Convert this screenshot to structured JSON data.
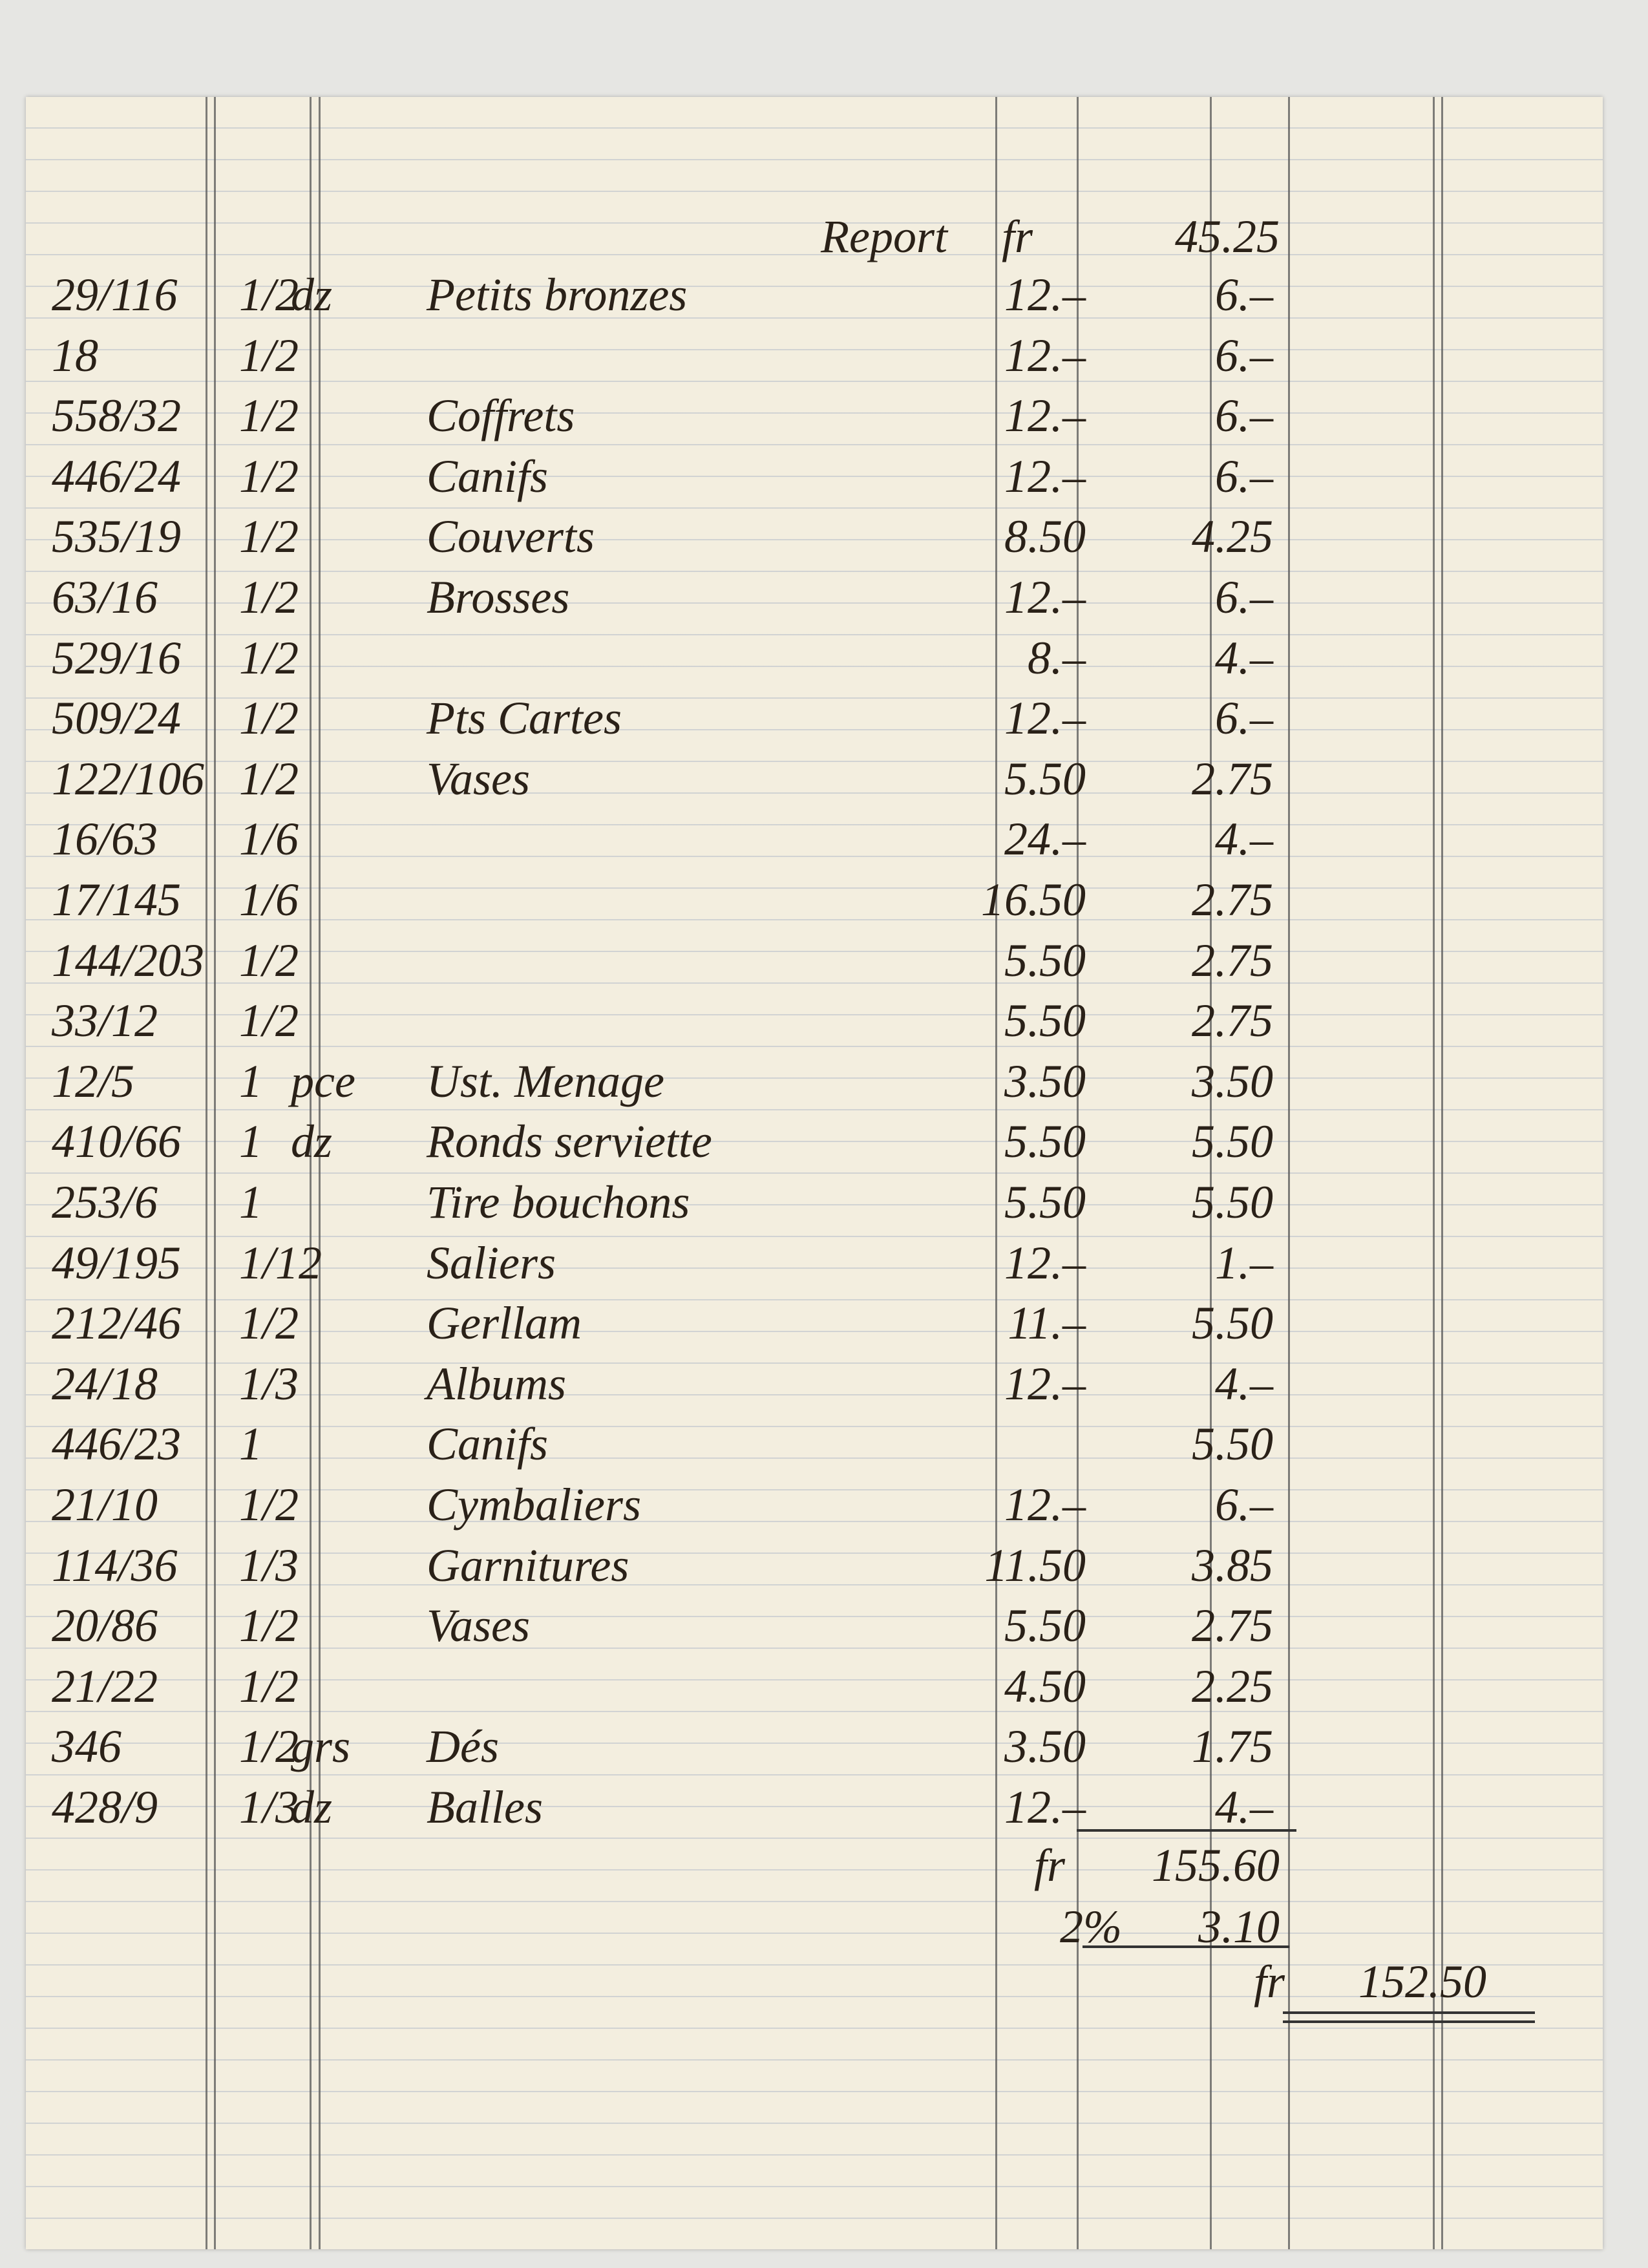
{
  "header": {
    "carried_forward_label": "Report",
    "currency": "fr",
    "carried_forward": "45.25"
  },
  "items": [
    {
      "ref": "29/116",
      "qty": "1/2",
      "unit": "dz",
      "description": "Petits bronzes",
      "unit_price": "12.–",
      "amount": "6.–"
    },
    {
      "ref": "18",
      "qty": "1/2",
      "unit_price": "12.–",
      "amount": "6.–"
    },
    {
      "ref": "558/32",
      "qty": "1/2",
      "description": "Coffrets",
      "unit_price": "12.–",
      "amount": "6.–"
    },
    {
      "ref": "446/24",
      "qty": "1/2",
      "description": "Canifs",
      "unit_price": "12.–",
      "amount": "6.–"
    },
    {
      "ref": "535/19",
      "qty": "1/2",
      "description": "Couverts",
      "unit_price": "8.50",
      "amount": "4.25"
    },
    {
      "ref": "63/16",
      "qty": "1/2",
      "description": "Brosses",
      "unit_price": "12.–",
      "amount": "6.–"
    },
    {
      "ref": "529/16",
      "qty": "1/2",
      "unit_price": "8.–",
      "amount": "4.–"
    },
    {
      "ref": "509/24",
      "qty": "1/2",
      "description": "Pts Cartes",
      "unit_price": "12.–",
      "amount": "6.–"
    },
    {
      "ref": "122/106",
      "qty": "1/2",
      "description": "Vases",
      "unit_price": "5.50",
      "amount": "2.75"
    },
    {
      "ref": "16/63",
      "qty": "1/6",
      "unit_price": "24.–",
      "amount": "4.–"
    },
    {
      "ref": "17/145",
      "qty": "1/6",
      "unit_price": "16.50",
      "amount": "2.75"
    },
    {
      "ref": "144/203",
      "qty": "1/2",
      "unit_price": "5.50",
      "amount": "2.75"
    },
    {
      "ref": "33/12",
      "qty": "1/2",
      "unit_price": "5.50",
      "amount": "2.75"
    },
    {
      "ref": "12/5",
      "qty": "1",
      "unit": "pce",
      "description": "Ust. Menage",
      "unit_price": "3.50",
      "amount": "3.50"
    },
    {
      "ref": "410/66",
      "qty": "1",
      "unit": "dz",
      "description": "Ronds serviette",
      "unit_price": "5.50",
      "amount": "5.50"
    },
    {
      "ref": "253/6",
      "qty": "1",
      "description": "Tire bouchons",
      "unit_price": "5.50",
      "amount": "5.50"
    },
    {
      "ref": "49/195",
      "qty": "1/12",
      "description": "Saliers",
      "unit_price": "12.–",
      "amount": "1.–"
    },
    {
      "ref": "212/46",
      "qty": "1/2",
      "description": "Gerllam",
      "unit_price": "11.–",
      "amount": "5.50"
    },
    {
      "ref": "24/18",
      "qty": "1/3",
      "description": "Albums",
      "unit_price": "12.–",
      "amount": "4.–"
    },
    {
      "ref": "446/23",
      "qty": "1",
      "description": "Canifs",
      "amount": "5.50"
    },
    {
      "ref": "21/10",
      "qty": "1/2",
      "description": "Cymbaliers",
      "unit_price": "12.–",
      "amount": "6.–"
    },
    {
      "ref": "114/36",
      "qty": "1/3",
      "description": "Garnitures",
      "unit_price": "11.50",
      "amount": "3.85"
    },
    {
      "ref": "20/86",
      "qty": "1/2",
      "description": "Vases",
      "unit_price": "5.50",
      "amount": "2.75"
    },
    {
      "ref": "21/22",
      "qty": "1/2",
      "unit_price": "4.50",
      "amount": "2.25"
    },
    {
      "ref": "346",
      "qty": "1/2",
      "unit": "grs",
      "description": "Dés",
      "unit_price": "3.50",
      "amount": "1.75"
    },
    {
      "ref": "428/9",
      "qty": "1/3",
      "unit": "dz",
      "description": "Balles",
      "unit_price": "12.–",
      "amount": "4.–"
    }
  ],
  "totals": {
    "subtotal_currency": "fr",
    "subtotal": "155.60",
    "discount_label": "2%",
    "discount": "3.10",
    "net_currency": "fr",
    "net": "152.50"
  }
}
